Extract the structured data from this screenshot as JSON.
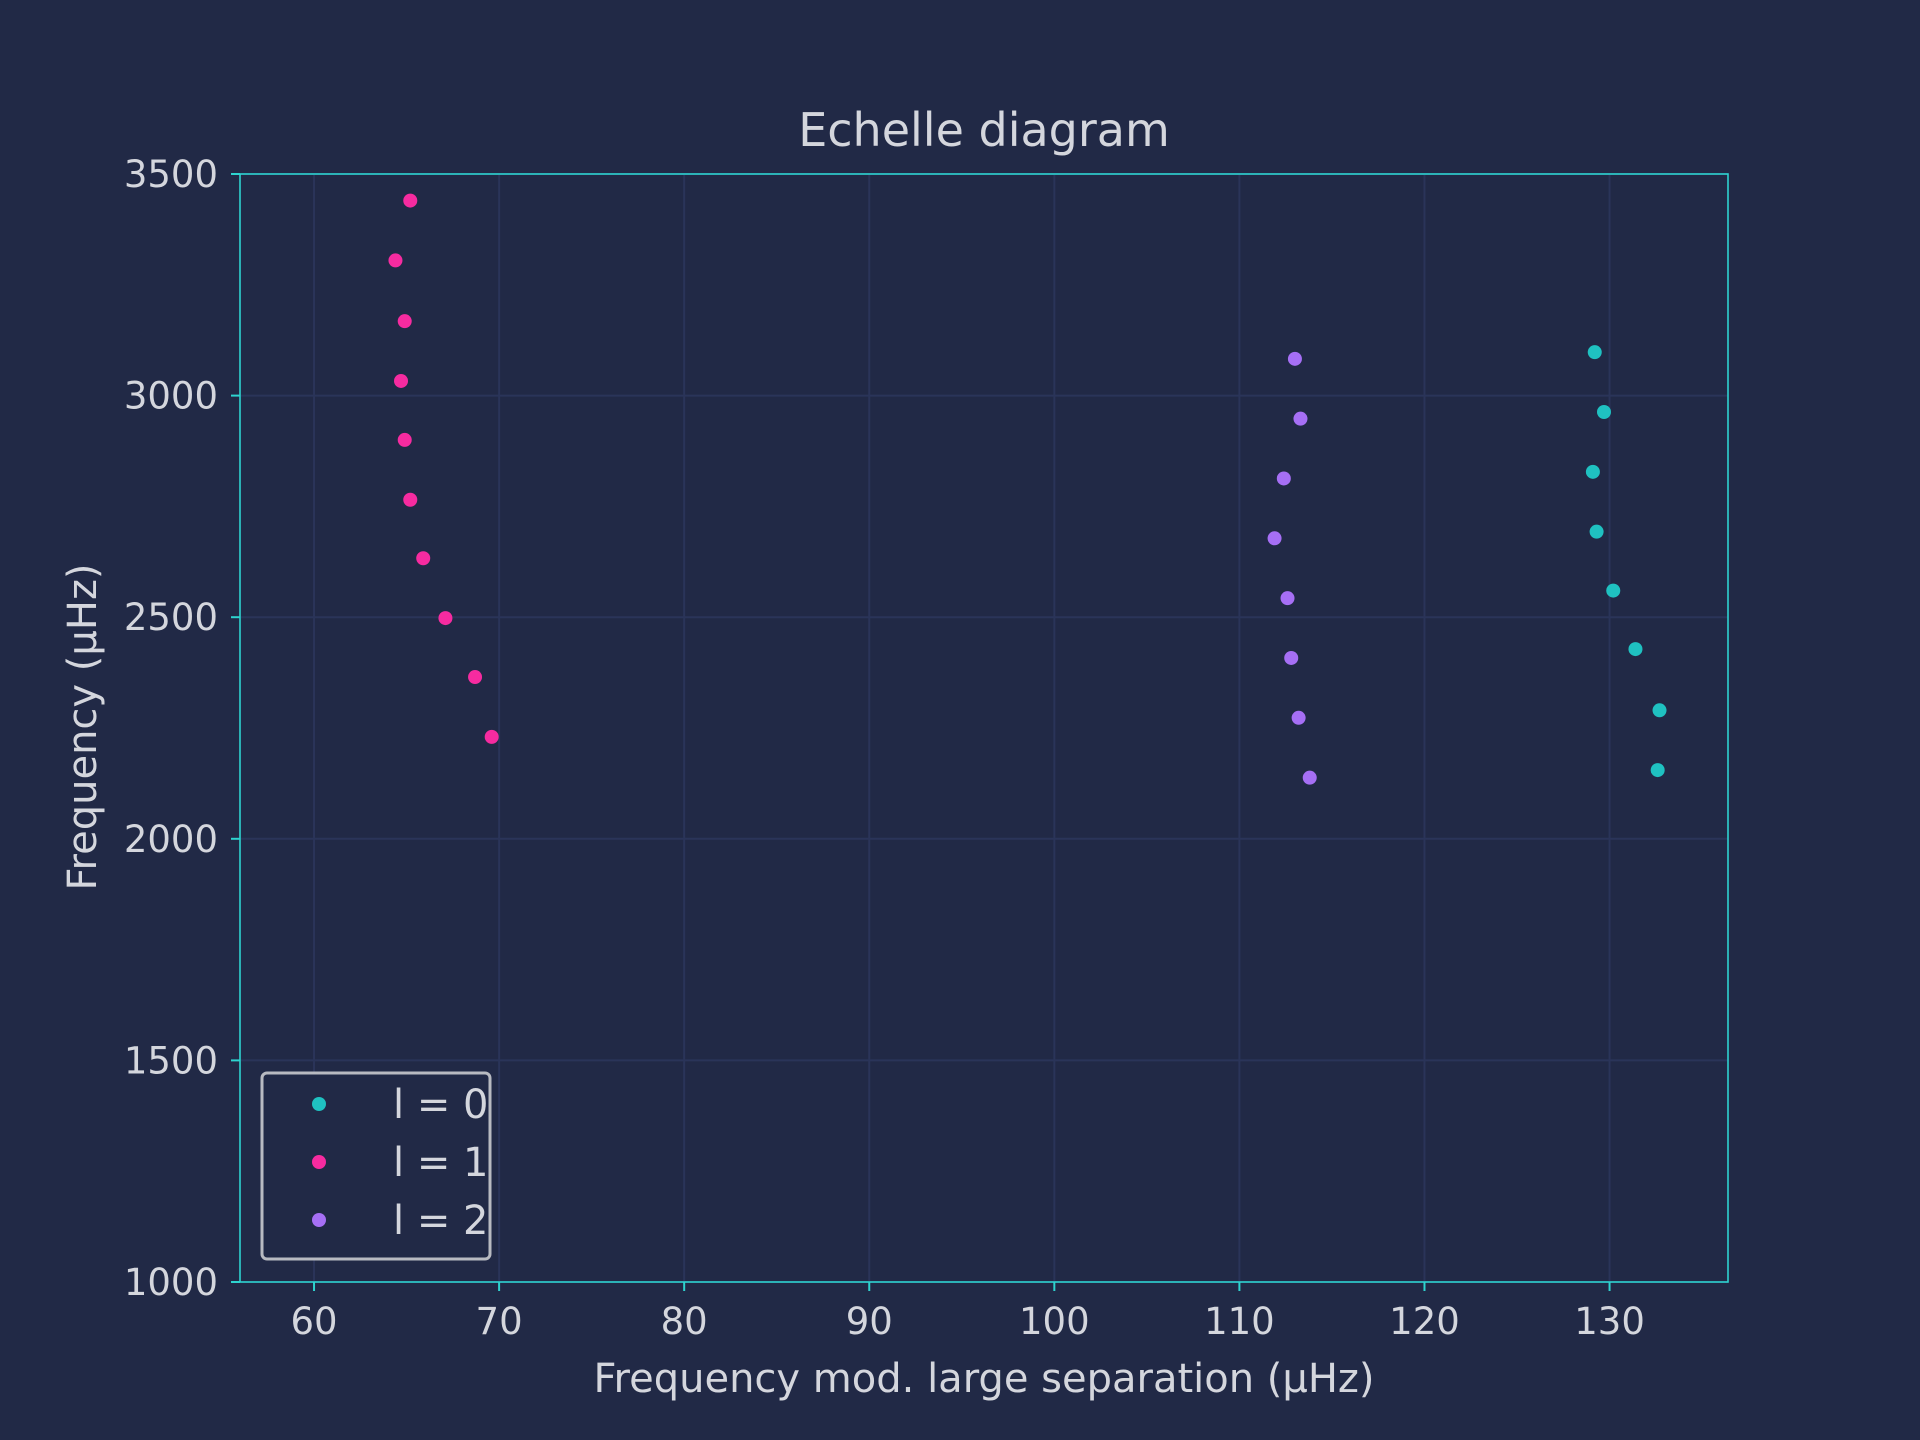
{
  "chart_data": {
    "type": "scatter",
    "title": "Echelle diagram",
    "xlabel": "Frequency mod. large separation (μHz)",
    "ylabel": "Frequency (μHz)",
    "xlim": [
      56,
      136.4
    ],
    "ylim": [
      1000,
      3500
    ],
    "xticks": [
      60,
      70,
      80,
      90,
      100,
      110,
      120,
      130
    ],
    "yticks": [
      1000,
      1500,
      2000,
      2500,
      3000,
      3500
    ],
    "grid": true,
    "legend_position": "lower-left",
    "colors": {
      "background": "#212946",
      "frame": "#2ed3cf",
      "grid": "#2a3459",
      "text": "#d4d6dd"
    },
    "series": [
      {
        "name": "l = 0",
        "color": "#1fc1c1",
        "x": [
          132.6,
          132.7,
          131.4,
          130.2,
          129.3,
          129.1,
          129.7,
          129.2
        ],
        "y": [
          2155,
          2290,
          2428,
          2560,
          2693,
          2828,
          2963,
          3098
        ]
      },
      {
        "name": "l = 1",
        "color": "#f62ba0",
        "x": [
          69.6,
          68.7,
          67.1,
          65.9,
          65.2,
          64.9,
          64.7,
          64.9,
          64.4,
          65.2
        ],
        "y": [
          2230,
          2365,
          2498,
          2633,
          2765,
          2900,
          3033,
          3168,
          3305,
          3440
        ]
      },
      {
        "name": "l = 2",
        "color": "#a66ff5",
        "x": [
          113.8,
          113.2,
          112.8,
          112.6,
          111.9,
          112.4,
          113.3,
          113.0
        ],
        "y": [
          2138,
          2273,
          2408,
          2543,
          2678,
          2813,
          2948,
          3083
        ]
      }
    ]
  }
}
